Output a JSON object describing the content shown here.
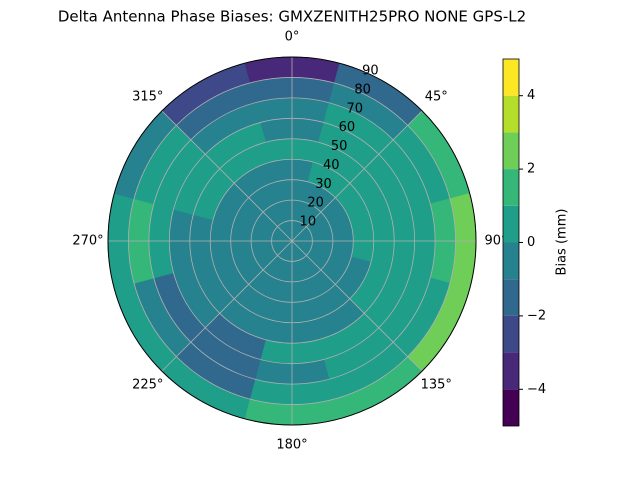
{
  "chart_data": {
    "type": "polar-contour",
    "title": "Delta Antenna Phase Biases: GMXZENITH25PRO  NONE GPS-L2",
    "colorbar_label": "Bias (mm)",
    "azimuth": [
      0,
      30,
      60,
      90,
      120,
      150,
      180,
      210,
      240,
      270,
      300,
      330
    ],
    "zenith": [
      5,
      15,
      25,
      35,
      45,
      55,
      65,
      75,
      85
    ],
    "z": [
      [
        -0.5,
        -0.5,
        -0.5,
        -0.5,
        -0.5,
        -0.5,
        -0.5,
        -0.5,
        -0.5,
        -0.5,
        -0.5,
        -0.5
      ],
      [
        -0.5,
        -0.5,
        -0.5,
        -0.5,
        -0.5,
        -0.5,
        -0.5,
        -0.5,
        -0.5,
        -0.5,
        -0.5,
        -0.5
      ],
      [
        -0.5,
        -0.5,
        -0.5,
        -0.5,
        -0.5,
        -0.5,
        -0.5,
        -0.5,
        -0.5,
        -0.5,
        -0.5,
        -0.5
      ],
      [
        -0.5,
        0.5,
        0.5,
        0.5,
        -0.5,
        -0.5,
        -0.5,
        -0.5,
        -0.5,
        -0.5,
        -0.5,
        -0.5
      ],
      [
        0.5,
        0.5,
        0.5,
        0.5,
        0.5,
        -0.5,
        -0.5,
        -0.5,
        -0.5,
        -0.5,
        0.5,
        0.5
      ],
      [
        -0.5,
        0.5,
        0.5,
        0.5,
        0.5,
        0.5,
        0.5,
        -1.5,
        -0.5,
        -0.5,
        0.5,
        0.5
      ],
      [
        -0.5,
        0.5,
        0.5,
        0.5,
        0.5,
        0.5,
        -0.5,
        -1.5,
        -1.5,
        0.5,
        0.5,
        -0.5
      ],
      [
        -1.5,
        -0.5,
        0.5,
        1.5,
        0.5,
        0.5,
        0.5,
        -1.5,
        -0.5,
        1.5,
        0.5,
        -1.5
      ],
      [
        -3.5,
        -1.5,
        1.5,
        2.5,
        2.5,
        1.5,
        1.5,
        0.5,
        0.5,
        0.5,
        -0.5,
        -2.5
      ]
    ],
    "levels": [
      -5,
      -4,
      -3,
      -2,
      -1,
      0,
      1,
      2,
      3,
      4,
      5
    ],
    "colors": [
      "#440154",
      "#482878",
      "#3e4989",
      "#31688e",
      "#26828e",
      "#1f9e89",
      "#35b779",
      "#6ece58",
      "#b5de2b",
      "#fde725"
    ],
    "rlim": [
      0,
      90
    ],
    "rticks": [
      10,
      20,
      30,
      40,
      50,
      60,
      70,
      80,
      90
    ],
    "thetaticks": [
      {
        "value": 0,
        "label": "0°"
      },
      {
        "value": 45,
        "label": "45°"
      },
      {
        "value": 90,
        "label": "90°"
      },
      {
        "value": 135,
        "label": "135°"
      },
      {
        "value": 180,
        "label": "180°"
      },
      {
        "value": 225,
        "label": "225°"
      },
      {
        "value": 270,
        "label": "270°"
      },
      {
        "value": 315,
        "label": "315°"
      }
    ],
    "cticks": [
      {
        "value": -4,
        "label": "−4"
      },
      {
        "value": -2,
        "label": "−2"
      },
      0,
      2,
      4
    ],
    "grid": true
  }
}
